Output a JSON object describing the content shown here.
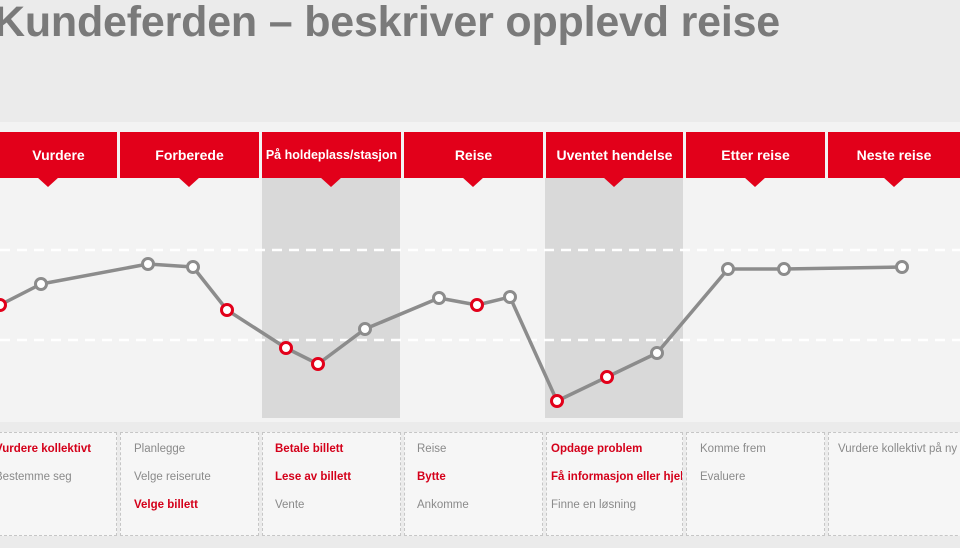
{
  "title": "Kundeferden – beskriver opplevd reise",
  "stages": [
    {
      "label": "Vurdere"
    },
    {
      "label": "Forberede"
    },
    {
      "label": "På holdeplass/stasjon"
    },
    {
      "label": "Reise"
    },
    {
      "label": "Uventet hendelse"
    },
    {
      "label": "Etter reise"
    },
    {
      "label": "Neste reise"
    }
  ],
  "columns": [
    {
      "items": [
        {
          "text": "Vurdere kollektivt",
          "highlight": true
        },
        {
          "text": "Bestemme seg",
          "highlight": false
        }
      ]
    },
    {
      "items": [
        {
          "text": "Planlegge",
          "highlight": false
        },
        {
          "text": "Velge reiserute",
          "highlight": false
        },
        {
          "text": "Velge billett",
          "highlight": true
        }
      ]
    },
    {
      "items": [
        {
          "text": "Betale billett",
          "highlight": true
        },
        {
          "text": "Lese av billett",
          "highlight": true
        },
        {
          "text": "Vente",
          "highlight": false
        }
      ]
    },
    {
      "items": [
        {
          "text": "Reise",
          "highlight": false
        },
        {
          "text": "Bytte",
          "highlight": true
        },
        {
          "text": "Ankomme",
          "highlight": false
        }
      ]
    },
    {
      "items": [
        {
          "text": "Opdage problem",
          "highlight": true
        },
        {
          "text": "Få informasjon eller hjelp",
          "highlight": true
        },
        {
          "text": "Finne en løsning",
          "highlight": false
        }
      ]
    },
    {
      "items": [
        {
          "text": "Komme frem",
          "highlight": false
        },
        {
          "text": "Evaluere",
          "highlight": false
        }
      ]
    },
    {
      "items": [
        {
          "text": "Vurdere kollektivt på ny",
          "highlight": false
        }
      ]
    }
  ],
  "colors": {
    "accent_red": "#e2001a",
    "line_gray": "#8c8c8c",
    "highlight_text": "#d4001a",
    "normal_text": "#8a8a8a"
  }
}
